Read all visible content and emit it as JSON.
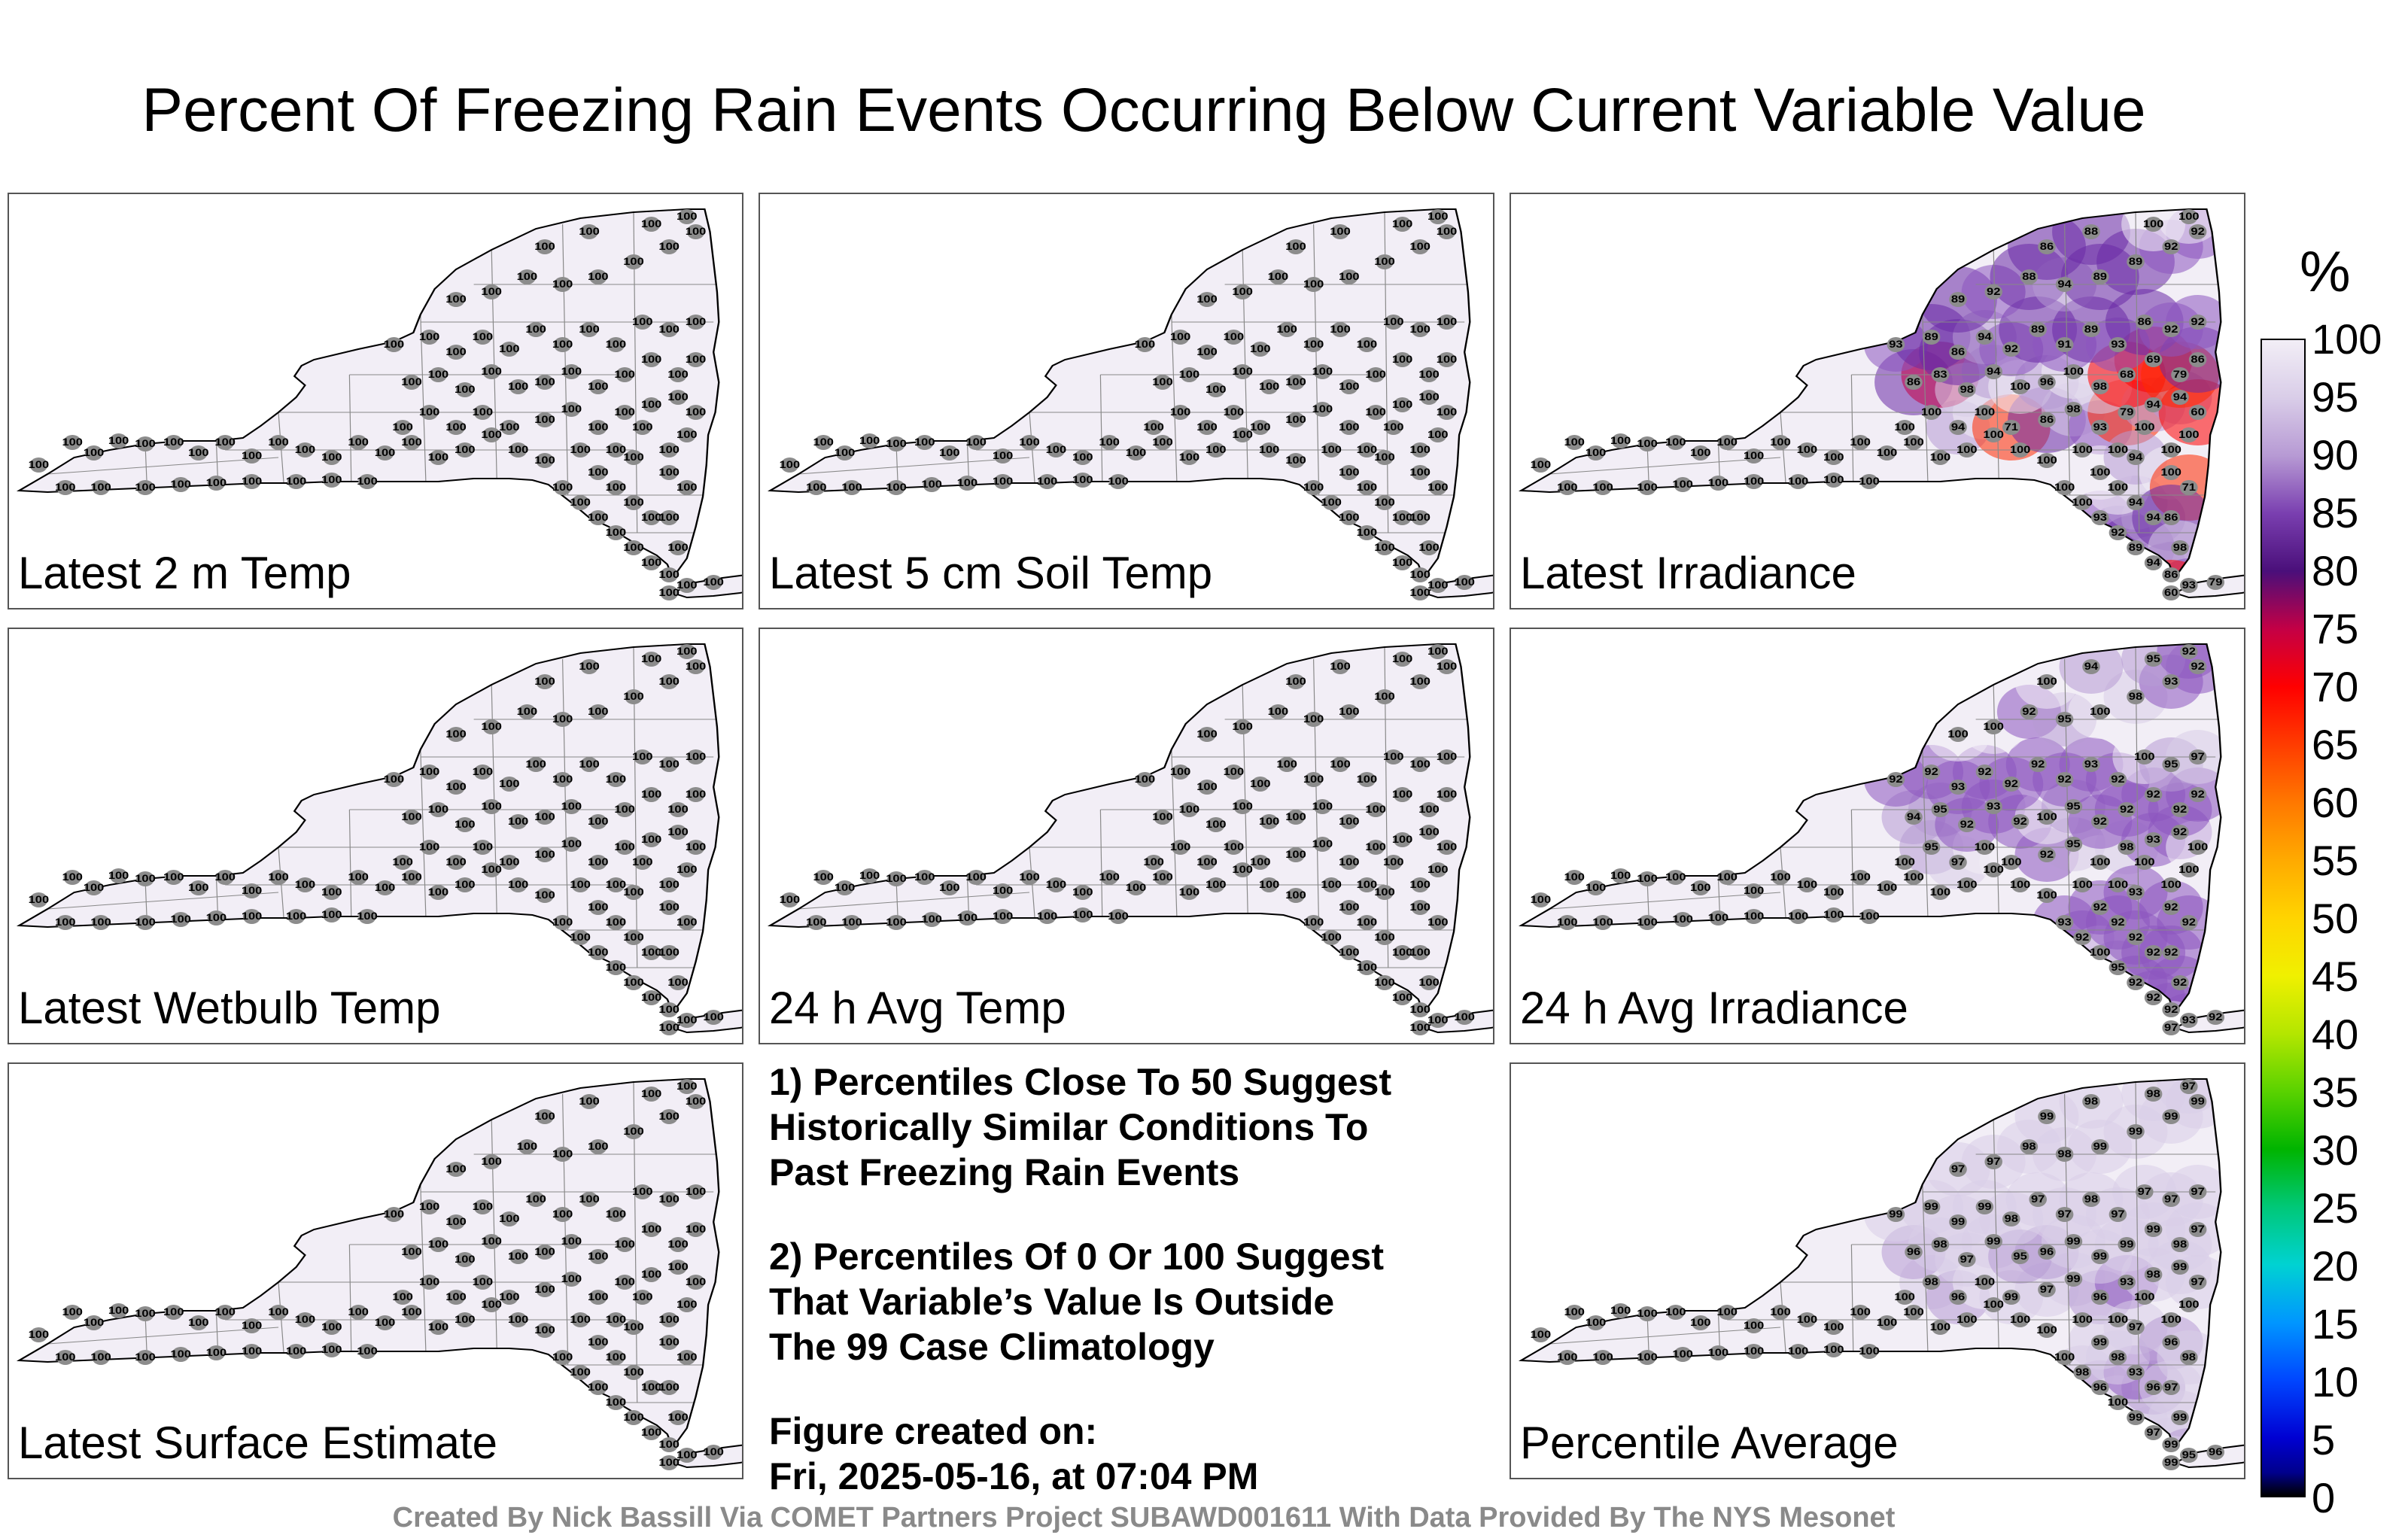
{
  "title": "Percent Of Freezing Rain Events Occurring Below Current Variable Value",
  "panels": [
    {
      "label": "Latest 2 m Temp",
      "mode": "all100"
    },
    {
      "label": "Latest 5 cm Soil Temp",
      "mode": "all100"
    },
    {
      "label": "Latest Irradiance",
      "mode": "irr"
    },
    {
      "label": "Latest Wetbulb Temp",
      "mode": "all100"
    },
    {
      "label": "24 h Avg Temp",
      "mode": "all100"
    },
    {
      "label": "24 h Avg Irradiance",
      "mode": "avgirr"
    },
    {
      "label": "Latest Surface Estimate",
      "mode": "all100"
    },
    {
      "label": "Percentile Average",
      "mode": "avg"
    }
  ],
  "notes": {
    "line1": "1) Percentiles Close To 50 Suggest",
    "line2": "Historically Similar Conditions To",
    "line3": "Past Freezing Rain Events",
    "line4": "2) Percentiles Of 0 Or 100 Suggest",
    "line5": "That Variable’s Value Is Outside",
    "line6": "The 99 Case Climatology",
    "line7": "Figure created on:",
    "line8": "Fri, 2025-05-16, at 07:04 PM"
  },
  "colorbar": {
    "unit": "%",
    "ticks": [
      "100",
      "95",
      "90",
      "85",
      "80",
      "75",
      "70",
      "65",
      "60",
      "55",
      "50",
      "45",
      "40",
      "35",
      "30",
      "25",
      "20",
      "15",
      "10",
      "5",
      "0"
    ]
  },
  "credit": "Created By Nick Bassill Via COMET Partners Project SUBAWD001611 With Data Provided By The NYS Mesonet",
  "station_values": {
    "irr": [
      "100",
      "100",
      "94",
      "100",
      "71",
      "86",
      "98",
      "93",
      "79",
      "94",
      "94",
      "60",
      "86",
      "83",
      "98",
      "94",
      "100",
      "96",
      "100",
      "98",
      "68",
      "69",
      "79",
      "86",
      "93",
      "89",
      "86",
      "94",
      "92",
      "89",
      "91",
      "89",
      "93",
      "86",
      "92",
      "92",
      "89",
      "92",
      "88",
      "94",
      "89",
      "89",
      "92",
      "92",
      "86",
      "88",
      "100",
      "100",
      "100",
      "100",
      "93",
      "92",
      "89",
      "94",
      "86",
      "94",
      "94"
    ],
    "avgirr": [
      "100",
      "95",
      "97",
      "100",
      "100",
      "92",
      "95",
      "100",
      "98",
      "93",
      "92",
      "100",
      "94",
      "95",
      "92",
      "93",
      "92",
      "100",
      "95",
      "92",
      "92",
      "92",
      "92",
      "92",
      "92",
      "92",
      "93",
      "92",
      "92",
      "92",
      "92",
      "93",
      "92"
    ],
    "avg": [
      "100",
      "98",
      "96",
      "100",
      "99",
      "97",
      "99",
      "96",
      "93",
      "98",
      "99",
      "97",
      "96",
      "98",
      "97",
      "99",
      "95",
      "96",
      "99",
      "99",
      "99",
      "99",
      "98",
      "97",
      "99",
      "99",
      "99",
      "99",
      "98",
      "97",
      "97",
      "98",
      "97",
      "97",
      "97",
      "97",
      "97",
      "97",
      "98",
      "98",
      "99",
      "99",
      "99",
      "99",
      "99",
      "98",
      "98",
      "97"
    ]
  }
}
